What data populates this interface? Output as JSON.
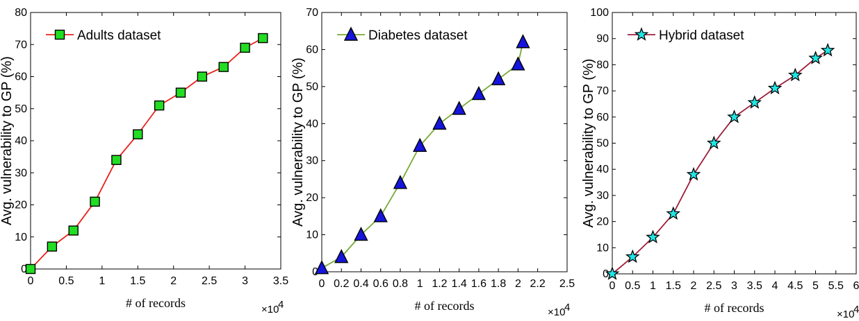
{
  "chart_data": [
    {
      "type": "line",
      "x_multiplier": "×10",
      "x_multiplier_exp": "4",
      "xlabel": "# of records",
      "ylabel": "Avg. vulnerability to GP (%)",
      "xlim": [
        0,
        3.5
      ],
      "ylim": [
        0,
        80
      ],
      "xticks": [
        "0",
        "0.5",
        "1",
        "1.5",
        "2",
        "2.5",
        "3",
        "3.5"
      ],
      "yticks": [
        "0",
        "10",
        "20",
        "30",
        "40",
        "50",
        "60",
        "70",
        "80"
      ],
      "grid": false,
      "legend_position": "top-left",
      "series": [
        {
          "name": "Adults dataset",
          "marker": "square",
          "line_color": "#e8201a",
          "marker_color": "#22dd22",
          "x": [
            0,
            0.3,
            0.6,
            0.9,
            1.2,
            1.5,
            1.8,
            2.1,
            2.4,
            2.7,
            3.0,
            3.25
          ],
          "y": [
            0,
            7,
            12,
            21,
            34,
            42,
            51,
            55,
            60,
            63,
            69,
            72
          ]
        }
      ]
    },
    {
      "type": "line",
      "x_multiplier": "×10",
      "x_multiplier_exp": "4",
      "xlabel": "# of records",
      "ylabel": "Avg. vulnerability to GP (%)",
      "xlim": [
        0,
        2.5
      ],
      "ylim": [
        0,
        70
      ],
      "xticks": [
        "0",
        "0.2",
        "0.4",
        "0.6",
        "0.8",
        "1",
        "1.2",
        "1.4",
        "1.6",
        "1.8",
        "2",
        "2.2",
        "2.5"
      ],
      "yticks": [
        "0",
        "10",
        "20",
        "30",
        "40",
        "50",
        "60",
        "70"
      ],
      "grid": false,
      "legend_position": "top-left",
      "series": [
        {
          "name": "Diabetes dataset",
          "marker": "triangle",
          "line_color": "#77aa33",
          "marker_color": "#1515dd",
          "x": [
            0,
            0.2,
            0.4,
            0.6,
            0.8,
            1.0,
            1.2,
            1.4,
            1.6,
            1.8,
            2.0,
            2.05
          ],
          "y": [
            1,
            4,
            10,
            15,
            24,
            34,
            40,
            44,
            48,
            52,
            56,
            62
          ]
        }
      ]
    },
    {
      "type": "line",
      "x_multiplier": "×10",
      "x_multiplier_exp": "4",
      "xlabel": "# of records",
      "ylabel": "Avg. vulnerability to GP (%)",
      "xlim": [
        0,
        6
      ],
      "ylim": [
        0,
        100
      ],
      "xticks": [
        "0",
        "0.5",
        "1",
        "1.5",
        "2",
        "2.5",
        "3",
        "3.5",
        "4",
        "4.5",
        "5",
        "5.5",
        "6"
      ],
      "yticks": [
        "0",
        "10",
        "20",
        "30",
        "40",
        "50",
        "60",
        "70",
        "80",
        "90",
        "100"
      ],
      "grid": false,
      "legend_position": "top-left",
      "series": [
        {
          "name": "Hybrid dataset",
          "marker": "star",
          "line_color": "#9b1d3a",
          "marker_color": "#22e5e5",
          "x": [
            0,
            0.5,
            1.0,
            1.5,
            2.0,
            2.5,
            3.0,
            3.5,
            4.0,
            4.5,
            5.0,
            5.3
          ],
          "y": [
            0,
            6.5,
            14,
            23,
            38,
            50,
            60,
            65.5,
            71,
            76,
            82.5,
            85.5
          ]
        }
      ]
    }
  ]
}
